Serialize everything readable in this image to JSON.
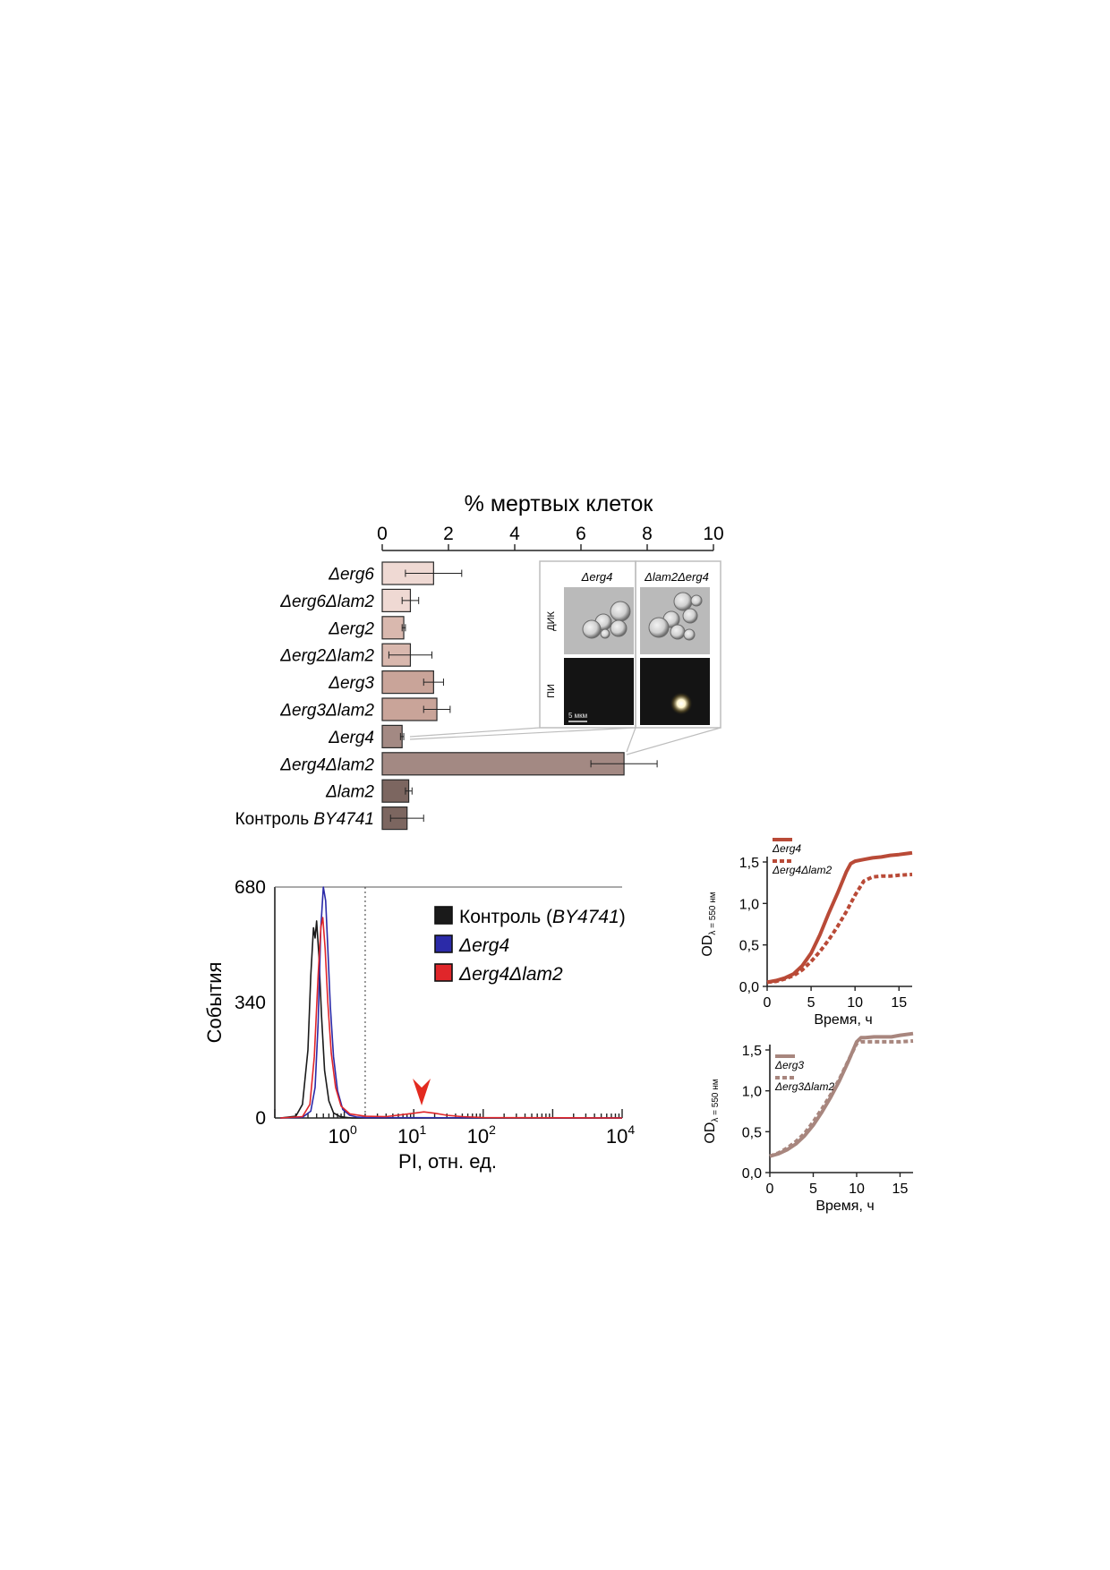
{
  "bar_panel": {
    "title": "% мертвых клеток",
    "inset": {
      "col_labels": [
        "Δerg4",
        "Δlam2Δerg4"
      ],
      "row_labels": [
        "ДИК",
        "ПИ"
      ],
      "scale_bar": "5 мкм"
    }
  },
  "hist_panel": {
    "legend": [
      {
        "pre": "Контроль (",
        "ital": "BY4741",
        "post": ")"
      },
      {
        "pre": "",
        "ital": "Δerg4",
        "post": ""
      },
      {
        "pre": "",
        "ital": "Δerg4Δlam2",
        "post": ""
      }
    ]
  },
  "colors": {
    "bar_light": "#efd9d3",
    "bar_mid": "#d9b8ae",
    "bar_tan": "#c9a499",
    "bar_dark": "#a38983",
    "bar_darkest": "#7c6660",
    "growth1": "#b94a37",
    "growth2": "#a8867e",
    "hist_control": "#1a1a1a",
    "hist_erg4": "#2b2aa8",
    "hist_erg4lam2": "#e0262a"
  },
  "chart_data": [
    {
      "type": "bar",
      "orientation": "horizontal",
      "title": "% мертвых клеток",
      "xlim": [
        0,
        10
      ],
      "xticks": [
        0,
        2,
        4,
        6,
        8,
        10
      ],
      "categories": [
        {
          "pre": "",
          "ital": "Δerg6"
        },
        {
          "pre": "",
          "ital": "Δerg6Δlam2"
        },
        {
          "pre": "",
          "ital": "Δerg2"
        },
        {
          "pre": "",
          "ital": "Δerg2Δlam2"
        },
        {
          "pre": "",
          "ital": "Δerg3"
        },
        {
          "pre": "",
          "ital": "Δerg3Δlam2"
        },
        {
          "pre": "",
          "ital": "Δerg4"
        },
        {
          "pre": "",
          "ital": "Δerg4Δlam2"
        },
        {
          "pre": "",
          "ital": "Δlam2"
        },
        {
          "pre": "Контроль ",
          "ital": "BY4741"
        }
      ],
      "values": [
        1.55,
        0.85,
        0.65,
        0.85,
        1.55,
        1.65,
        0.6,
        7.3,
        0.8,
        0.75
      ],
      "errors": [
        0.85,
        0.25,
        0.05,
        0.65,
        0.3,
        0.4,
        0.05,
        1.0,
        0.1,
        0.5
      ],
      "fill_keys": [
        "bar_light",
        "bar_light",
        "bar_mid",
        "bar_mid",
        "bar_tan",
        "bar_tan",
        "bar_dark",
        "bar_dark",
        "bar_darkest",
        "bar_darkest"
      ]
    },
    {
      "type": "line",
      "xlabel": "PI, отн. ед.",
      "ylabel": "События",
      "xscale": "log",
      "xlim": [
        0.1,
        10000
      ],
      "xticks": [
        {
          "base": "10",
          "exp": "0"
        },
        {
          "base": "10",
          "exp": "1"
        },
        {
          "base": "10",
          "exp": "2"
        },
        {
          "base": "10",
          "exp": "4"
        }
      ],
      "xtick_values": [
        1,
        10,
        100,
        10000
      ],
      "ylim": [
        0,
        680
      ],
      "yticks": [
        0,
        340,
        680
      ],
      "gate_x": 2.0,
      "arrow_x": 13,
      "series": [
        {
          "name": "Контроль (BY4741)",
          "color_key": "hist_control",
          "x": [
            0.12,
            0.2,
            0.25,
            0.3,
            0.33,
            0.36,
            0.38,
            0.4,
            0.43,
            0.47,
            0.52,
            0.6,
            0.7,
            0.85,
            1.0,
            1.3,
            10000
          ],
          "y": [
            0,
            5,
            40,
            200,
            420,
            560,
            530,
            580,
            480,
            300,
            140,
            50,
            15,
            5,
            2,
            0,
            0
          ]
        },
        {
          "name": "Δerg4",
          "color_key": "hist_erg4",
          "x": [
            0.12,
            0.25,
            0.33,
            0.38,
            0.42,
            0.46,
            0.5,
            0.54,
            0.58,
            0.63,
            0.7,
            0.8,
            0.95,
            1.2,
            1.5,
            2.0,
            10000
          ],
          "y": [
            0,
            2,
            20,
            90,
            280,
            560,
            680,
            640,
            500,
            330,
            180,
            80,
            25,
            8,
            3,
            1,
            0
          ]
        },
        {
          "name": "Δerg4Δlam2",
          "color_key": "hist_erg4lam2",
          "x": [
            0.12,
            0.25,
            0.32,
            0.37,
            0.42,
            0.46,
            0.49,
            0.53,
            0.58,
            0.65,
            0.75,
            0.9,
            1.2,
            2,
            4,
            7,
            10,
            14,
            20,
            30,
            50,
            100,
            10000
          ],
          "y": [
            0,
            4,
            40,
            180,
            420,
            560,
            590,
            500,
            340,
            190,
            90,
            35,
            12,
            5,
            4,
            10,
            14,
            18,
            14,
            8,
            4,
            1,
            0
          ]
        }
      ]
    },
    {
      "type": "line",
      "xlabel": "Время, ч",
      "ylabel": {
        "pre": "OD",
        "sub": "λ = 550 нм"
      },
      "xlim": [
        0,
        16.5
      ],
      "xticks": [
        0,
        5,
        10,
        15
      ],
      "ylim": [
        0,
        1.5
      ],
      "yticks": [
        "0,0",
        "0,5",
        "1,0",
        "1,5"
      ],
      "ytick_values": [
        0,
        0.5,
        1.0,
        1.5
      ],
      "series": [
        {
          "name": "Δerg4",
          "style": "solid",
          "color_key": "growth1",
          "x": [
            0,
            1,
            2,
            3,
            4,
            5,
            6,
            7,
            8,
            9,
            9.5,
            10,
            11,
            12,
            13,
            14,
            15,
            16.5
          ],
          "y": [
            0.05,
            0.07,
            0.1,
            0.15,
            0.25,
            0.4,
            0.62,
            0.88,
            1.12,
            1.38,
            1.48,
            1.51,
            1.53,
            1.55,
            1.56,
            1.58,
            1.59,
            1.61
          ]
        },
        {
          "name": "Δerg4Δlam2",
          "style": "dashed",
          "color_key": "growth1",
          "x": [
            0,
            1,
            2,
            3,
            4,
            5,
            6,
            7,
            8,
            9,
            10,
            11,
            12,
            13,
            14,
            15,
            16.5
          ],
          "y": [
            0.05,
            0.06,
            0.09,
            0.13,
            0.2,
            0.3,
            0.42,
            0.56,
            0.72,
            0.9,
            1.1,
            1.27,
            1.32,
            1.33,
            1.33,
            1.34,
            1.35
          ]
        }
      ]
    },
    {
      "type": "line",
      "xlabel": "Время, ч",
      "ylabel": {
        "pre": "OD",
        "sub": "λ = 550 нм"
      },
      "xlim": [
        0,
        16.5
      ],
      "xticks": [
        0,
        5,
        10,
        15
      ],
      "ylim": [
        0,
        1.5
      ],
      "yticks": [
        "0,0",
        "0,5",
        "1,0",
        "1,5"
      ],
      "ytick_values": [
        0,
        0.5,
        1.0,
        1.5
      ],
      "series": [
        {
          "name": "Δerg3",
          "style": "solid",
          "color_key": "growth2",
          "x": [
            0,
            1,
            2,
            3,
            4,
            5,
            6,
            7,
            8,
            9,
            10,
            10.5,
            11,
            12,
            13,
            14,
            15,
            16.5
          ],
          "y": [
            0.2,
            0.23,
            0.28,
            0.35,
            0.45,
            0.58,
            0.74,
            0.92,
            1.12,
            1.35,
            1.6,
            1.65,
            1.65,
            1.66,
            1.66,
            1.66,
            1.68,
            1.7
          ]
        },
        {
          "name": "Δerg3Δlam2",
          "style": "dashed",
          "color_key": "growth2",
          "x": [
            0,
            1,
            2,
            3,
            4,
            5,
            6,
            7,
            8,
            9,
            10,
            10.5,
            11,
            12,
            13,
            14,
            15,
            16.5
          ],
          "y": [
            0.2,
            0.24,
            0.3,
            0.38,
            0.48,
            0.62,
            0.78,
            0.95,
            1.14,
            1.36,
            1.58,
            1.6,
            1.6,
            1.6,
            1.6,
            1.6,
            1.6,
            1.61
          ]
        }
      ]
    }
  ]
}
